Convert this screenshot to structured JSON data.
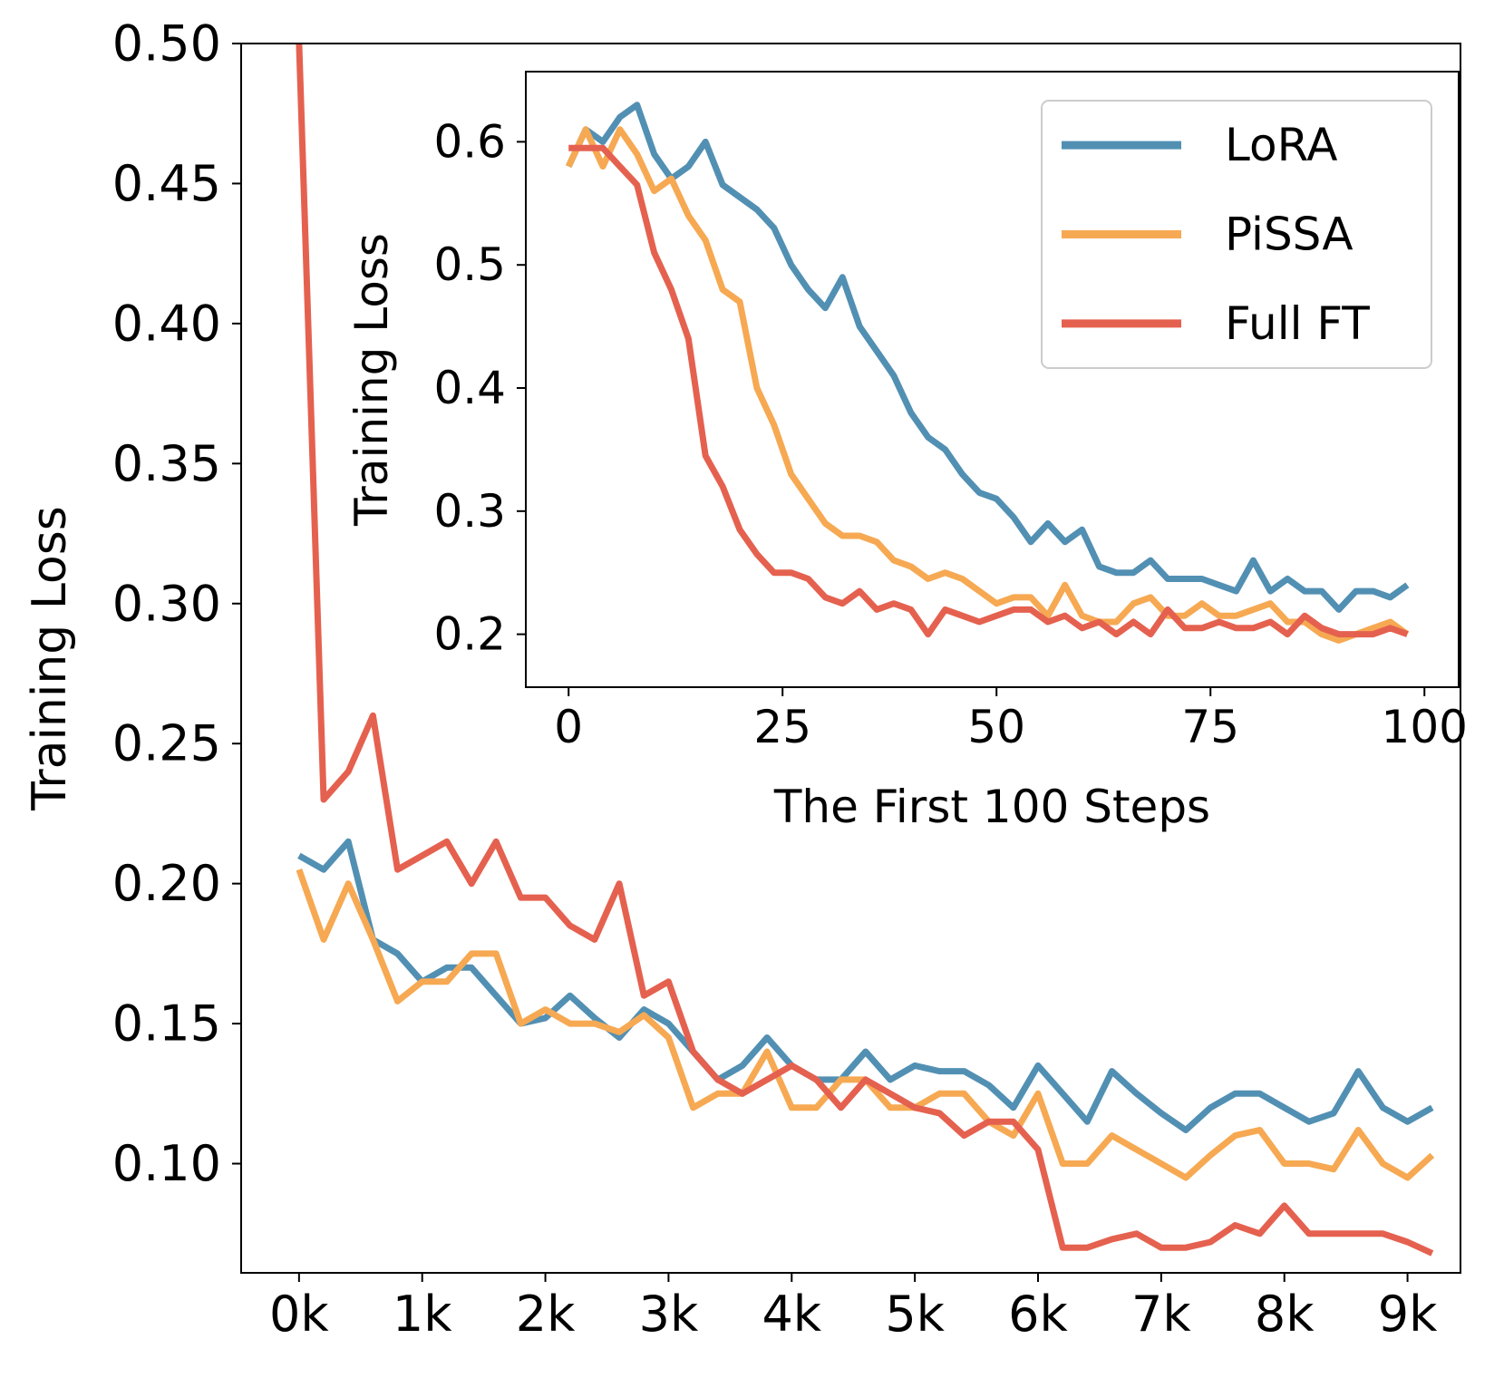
{
  "chart_data": [
    {
      "type": "line",
      "ylabel": "Training Loss",
      "x": [
        0,
        200,
        400,
        600,
        800,
        1000,
        1200,
        1400,
        1600,
        1800,
        2000,
        2200,
        2400,
        2600,
        2800,
        3000,
        3200,
        3400,
        3600,
        3800,
        4000,
        4200,
        4400,
        4600,
        4800,
        5000,
        5200,
        5400,
        5600,
        5800,
        6000,
        6200,
        6400,
        6600,
        6800,
        7000,
        7200,
        7400,
        7600,
        7800,
        8000,
        8200,
        8400,
        8600,
        8800,
        9000,
        9200
      ],
      "series": [
        {
          "color": "#5290b3",
          "values": [
            0.21,
            0.205,
            0.215,
            0.18,
            0.175,
            0.165,
            0.17,
            0.17,
            0.16,
            0.15,
            0.152,
            0.16,
            0.152,
            0.145,
            0.155,
            0.15,
            0.14,
            0.13,
            0.135,
            0.145,
            0.135,
            0.13,
            0.13,
            0.14,
            0.13,
            0.135,
            0.133,
            0.133,
            0.128,
            0.12,
            0.135,
            0.125,
            0.115,
            0.133,
            0.125,
            0.118,
            0.112,
            0.12,
            0.125,
            0.125,
            0.12,
            0.115,
            0.118,
            0.133,
            0.12,
            0.115,
            0.12
          ]
        },
        {
          "color": "#f6a952",
          "values": [
            0.205,
            0.18,
            0.2,
            0.18,
            0.158,
            0.165,
            0.165,
            0.175,
            0.175,
            0.15,
            0.155,
            0.15,
            0.15,
            0.147,
            0.153,
            0.145,
            0.12,
            0.125,
            0.125,
            0.14,
            0.12,
            0.12,
            0.13,
            0.13,
            0.12,
            0.12,
            0.125,
            0.125,
            0.115,
            0.11,
            0.125,
            0.1,
            0.1,
            0.11,
            0.105,
            0.1,
            0.095,
            0.103,
            0.11,
            0.112,
            0.1,
            0.1,
            0.098,
            0.112,
            0.1,
            0.095,
            0.103
          ]
        },
        {
          "color": "#e5614f",
          "values": [
            0.5,
            0.23,
            0.24,
            0.26,
            0.205,
            0.21,
            0.215,
            0.2,
            0.215,
            0.195,
            0.195,
            0.185,
            0.18,
            0.2,
            0.16,
            0.165,
            0.14,
            0.13,
            0.125,
            0.13,
            0.135,
            0.13,
            0.12,
            0.13,
            0.125,
            0.12,
            0.118,
            0.11,
            0.115,
            0.115,
            0.105,
            0.07,
            0.07,
            0.073,
            0.075,
            0.07,
            0.07,
            0.072,
            0.078,
            0.075,
            0.085,
            0.075,
            0.075,
            0.075,
            0.075,
            0.072,
            0.068
          ]
        }
      ],
      "xlim": [
        -470,
        9430
      ],
      "xticks": [
        {
          "value": 0,
          "label": "0k"
        },
        {
          "value": 1000,
          "label": "1k"
        },
        {
          "value": 2000,
          "label": "2k"
        },
        {
          "value": 3000,
          "label": "3k"
        },
        {
          "value": 4000,
          "label": "4k"
        },
        {
          "value": 5000,
          "label": "5k"
        },
        {
          "value": 6000,
          "label": "6k"
        },
        {
          "value": 7000,
          "label": "7k"
        },
        {
          "value": 8000,
          "label": "8k"
        },
        {
          "value": 9000,
          "label": "9k"
        }
      ],
      "ylim": [
        0.061,
        0.5
      ],
      "yticks": [
        {
          "value": 0.1,
          "label": "0.10"
        },
        0.15,
        {
          "value": 0.2,
          "label": "0.20"
        },
        0.25,
        {
          "value": 0.3,
          "label": "0.30"
        },
        0.35,
        {
          "value": 0.4,
          "label": "0.40"
        },
        0.45,
        {
          "value": 0.5,
          "label": "0.50"
        }
      ],
      "grid": false
    },
    {
      "type": "line",
      "xlabel": "The First 100 Steps",
      "ylabel": "Training Loss",
      "x": [
        0,
        2,
        4,
        6,
        8,
        10,
        12,
        14,
        16,
        18,
        20,
        22,
        24,
        26,
        28,
        30,
        32,
        34,
        36,
        38,
        40,
        42,
        44,
        46,
        48,
        50,
        52,
        54,
        56,
        58,
        60,
        62,
        64,
        66,
        68,
        70,
        72,
        74,
        76,
        78,
        80,
        82,
        84,
        86,
        88,
        90,
        92,
        94,
        96,
        98
      ],
      "series": [
        {
          "name": "LoRA",
          "color": "#5290b3",
          "values": [
            0.58,
            0.61,
            0.6,
            0.62,
            0.63,
            0.59,
            0.57,
            0.58,
            0.6,
            0.565,
            0.555,
            0.545,
            0.53,
            0.5,
            0.48,
            0.465,
            0.49,
            0.45,
            0.43,
            0.41,
            0.38,
            0.36,
            0.35,
            0.33,
            0.315,
            0.31,
            0.295,
            0.275,
            0.29,
            0.275,
            0.285,
            0.255,
            0.25,
            0.25,
            0.26,
            0.245,
            0.245,
            0.245,
            0.24,
            0.235,
            0.26,
            0.235,
            0.245,
            0.235,
            0.235,
            0.22,
            0.235,
            0.235,
            0.23,
            0.24
          ]
        },
        {
          "name": "PiSSA",
          "color": "#f6a952",
          "values": [
            0.58,
            0.61,
            0.58,
            0.61,
            0.59,
            0.56,
            0.57,
            0.54,
            0.52,
            0.48,
            0.47,
            0.4,
            0.37,
            0.33,
            0.31,
            0.29,
            0.28,
            0.28,
            0.275,
            0.26,
            0.255,
            0.245,
            0.25,
            0.245,
            0.235,
            0.225,
            0.23,
            0.23,
            0.215,
            0.24,
            0.215,
            0.21,
            0.21,
            0.225,
            0.23,
            0.215,
            0.215,
            0.225,
            0.215,
            0.215,
            0.22,
            0.225,
            0.21,
            0.21,
            0.2,
            0.195,
            0.2,
            0.205,
            0.21,
            0.2
          ]
        },
        {
          "name": "Full FT",
          "color": "#e5614f",
          "values": [
            0.595,
            0.595,
            0.595,
            0.58,
            0.565,
            0.51,
            0.48,
            0.44,
            0.345,
            0.32,
            0.285,
            0.265,
            0.25,
            0.25,
            0.245,
            0.23,
            0.225,
            0.235,
            0.22,
            0.225,
            0.22,
            0.2,
            0.22,
            0.215,
            0.21,
            0.215,
            0.22,
            0.22,
            0.21,
            0.215,
            0.205,
            0.21,
            0.2,
            0.21,
            0.2,
            0.22,
            0.205,
            0.205,
            0.21,
            0.205,
            0.205,
            0.21,
            0.2,
            0.215,
            0.205,
            0.2,
            0.2,
            0.2,
            0.205,
            0.2
          ]
        }
      ],
      "xlim": [
        -5,
        104
      ],
      "xticks": [
        0,
        25,
        50,
        75,
        100
      ],
      "ylim": [
        0.157,
        0.657
      ],
      "yticks": [
        0.2,
        0.3,
        0.4,
        0.5,
        0.6
      ],
      "grid": false,
      "legend": "upper right"
    }
  ]
}
